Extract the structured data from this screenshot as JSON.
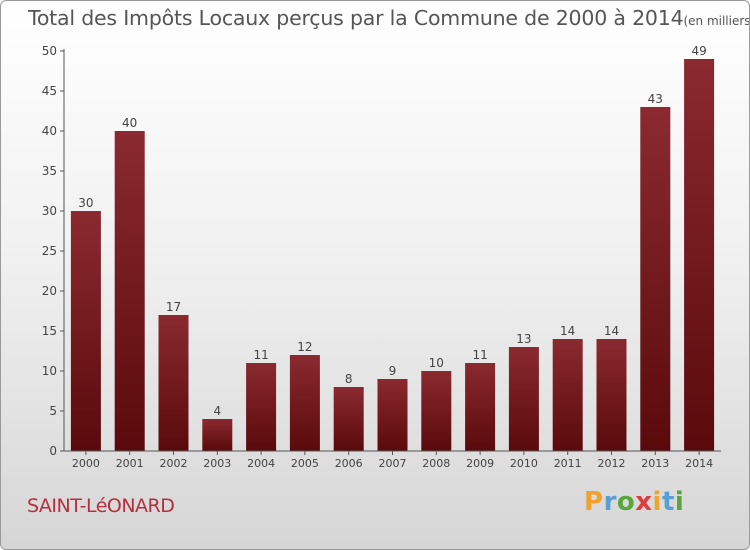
{
  "header": {
    "title": "Total des Impôts Locaux perçus par la Commune de 2000 à 2014",
    "unit": "(en milliers d'€)"
  },
  "commune": "SAINT-LéONARD",
  "logo": {
    "letters": [
      "P",
      "r",
      "o",
      "x",
      "i",
      "t",
      "i"
    ],
    "colors": [
      "#f0a22c",
      "#5a9fd4",
      "#5aa53c",
      "#e03c3c",
      "#f0a22c",
      "#5a9fd4",
      "#5aa53c"
    ]
  },
  "chart_data": {
    "type": "bar",
    "categories": [
      "2000",
      "2001",
      "2002",
      "2003",
      "2004",
      "2005",
      "2006",
      "2007",
      "2008",
      "2009",
      "2010",
      "2011",
      "2012",
      "2013",
      "2014"
    ],
    "values": [
      30,
      40,
      17,
      4,
      11,
      12,
      8,
      9,
      10,
      11,
      13,
      14,
      14,
      43,
      49
    ],
    "data_labels": [
      "30",
      "40",
      "17",
      "4",
      "11",
      "12",
      "8",
      "9",
      "10",
      "11",
      "13",
      "14",
      "14",
      "43",
      "49"
    ],
    "ylim": [
      0,
      50
    ],
    "yticks": [
      "0",
      "5",
      "10",
      "15",
      "20",
      "25",
      "30",
      "35",
      "40",
      "45",
      "50"
    ],
    "grid": false,
    "bar_color": "#7a1a20"
  }
}
